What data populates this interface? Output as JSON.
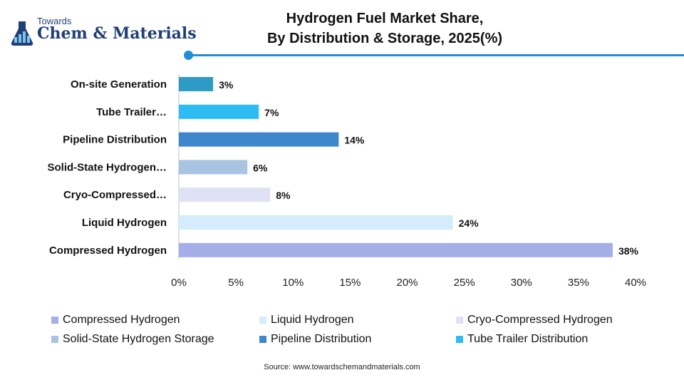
{
  "brand": {
    "towards": "Towards",
    "name": "Chem & Materials"
  },
  "title_lines": [
    "Hydrogen Fuel Market Share,",
    "By Distribution & Storage, 2025(%)"
  ],
  "source": "Source: www.towardschemandmaterials.com",
  "colors": {
    "accent": "#1f8ed3",
    "brand": "#1f3f75"
  },
  "chart_data": {
    "type": "bar",
    "orientation": "horizontal",
    "title": "Hydrogen Fuel Market Share, By Distribution & Storage, 2025(%)",
    "categories": [
      "On-site Generation",
      "Tube Trailer…",
      "Pipeline Distribution",
      "Solid-State Hydrogen…",
      "Cryo-Compressed…",
      "Liquid Hydrogen",
      "Compressed Hydrogen"
    ],
    "values": [
      3,
      7,
      14,
      6,
      8,
      24,
      38
    ],
    "data_labels": [
      "3%",
      "7%",
      "14%",
      "6%",
      "8%",
      "24%",
      "38%"
    ],
    "colors": [
      "#2e9ac6",
      "#2ebcf5",
      "#3f87cc",
      "#a8c4e2",
      "#dfe2f5",
      "#d4ecfb",
      "#a6aee8"
    ],
    "xlim": [
      0,
      40
    ],
    "xticks": [
      "0%",
      "5%",
      "10%",
      "15%",
      "20%",
      "25%",
      "30%",
      "35%",
      "40%"
    ],
    "grid": false,
    "legend_position": "bottom",
    "legend": [
      {
        "label": "Compressed Hydrogen",
        "color": "#a6aee8"
      },
      {
        "label": "Liquid Hydrogen",
        "color": "#d4ecfb"
      },
      {
        "label": "Cryo-Compressed Hydrogen",
        "color": "#dfe2f5"
      },
      {
        "label": "Solid-State Hydrogen Storage",
        "color": "#a8c4e2"
      },
      {
        "label": "Pipeline Distribution",
        "color": "#3f87cc"
      },
      {
        "label": "Tube Trailer Distribution",
        "color": "#2ebcf5"
      }
    ]
  }
}
